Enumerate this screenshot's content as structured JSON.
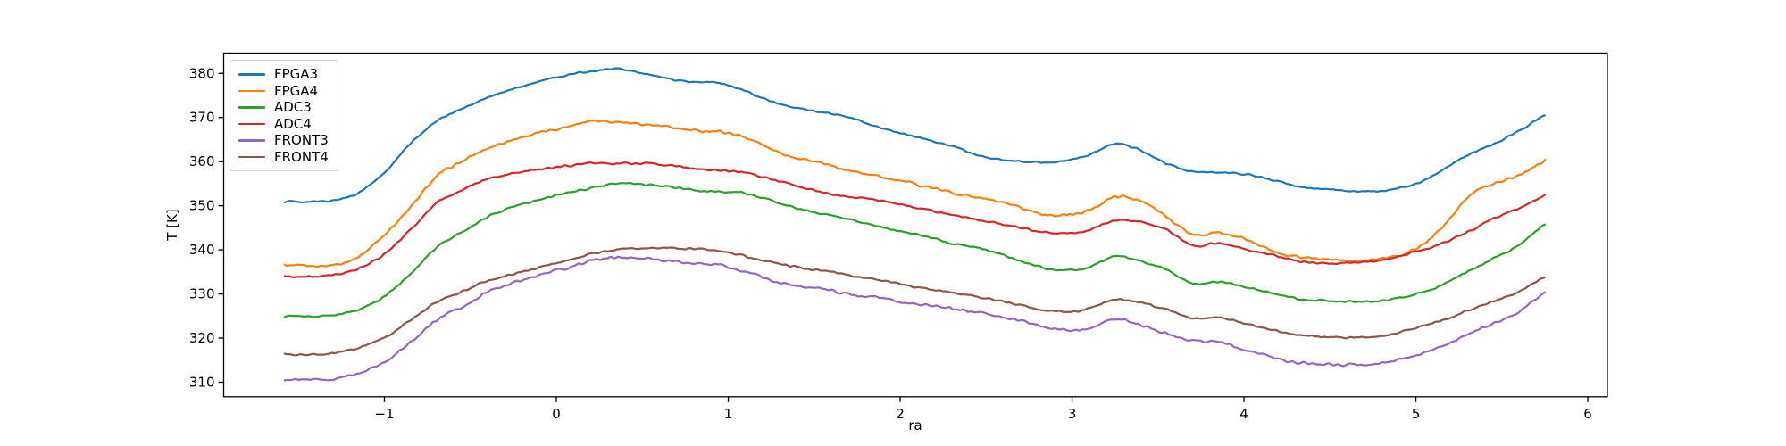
{
  "chart_data": {
    "type": "line",
    "title": "",
    "xlabel": "ra",
    "ylabel": "T [K]",
    "xlim": [
      -1.935,
      6.114
    ],
    "ylim": [
      306.7,
      384.6
    ],
    "xticks": [
      -1,
      0,
      1,
      2,
      3,
      4,
      5,
      6
    ],
    "yticks": [
      310,
      320,
      330,
      340,
      350,
      360,
      370,
      380
    ],
    "grid": false,
    "legend_position": "upper left",
    "background_color": "#ffffff",
    "axis_color": "#000000",
    "x": [
      -1.58,
      -1.45,
      -1.3,
      -1.15,
      -1.0,
      -0.85,
      -0.7,
      -0.55,
      -0.4,
      -0.25,
      -0.1,
      0.05,
      0.2,
      0.35,
      0.5,
      0.65,
      0.8,
      0.95,
      1.1,
      1.3,
      1.5,
      1.7,
      1.9,
      2.1,
      2.3,
      2.5,
      2.7,
      2.85,
      3.0,
      3.1,
      3.25,
      3.4,
      3.55,
      3.7,
      3.85,
      4.0,
      4.15,
      4.3,
      4.5,
      4.65,
      4.8,
      5.0,
      5.15,
      5.3,
      5.45,
      5.6,
      5.75
    ],
    "series": [
      {
        "name": "FPGA3",
        "color": "#1f77b4",
        "noise": 0.25,
        "values": [
          351.0,
          350.9,
          351.2,
          353.0,
          357.5,
          364.0,
          369.0,
          372.0,
          374.5,
          376.5,
          378.2,
          379.5,
          380.5,
          381.0,
          380.0,
          378.8,
          378.0,
          377.8,
          376.0,
          373.0,
          371.5,
          370.0,
          367.5,
          365.5,
          363.5,
          361.0,
          360.0,
          359.8,
          360.5,
          361.5,
          364.0,
          362.5,
          359.5,
          357.8,
          357.5,
          357.2,
          356.0,
          354.5,
          353.7,
          353.3,
          353.4,
          355.0,
          358.0,
          361.5,
          364.0,
          367.0,
          370.7
        ]
      },
      {
        "name": "FPGA4",
        "color": "#ff7f0e",
        "noise": 0.4,
        "values": [
          336.4,
          336.3,
          336.6,
          338.5,
          343.5,
          349.5,
          356.5,
          360.0,
          363.0,
          365.0,
          366.5,
          367.8,
          369.3,
          369.0,
          368.5,
          367.8,
          367.0,
          366.8,
          365.5,
          362.0,
          360.0,
          358.0,
          356.5,
          354.8,
          353.0,
          351.5,
          349.5,
          348.0,
          348.0,
          349.0,
          352.0,
          351.0,
          347.5,
          343.5,
          343.8,
          342.5,
          340.0,
          338.5,
          337.8,
          337.5,
          338.0,
          340.2,
          345.0,
          352.0,
          355.0,
          357.0,
          360.3
        ]
      },
      {
        "name": "ADC3",
        "color": "#2ca02c",
        "noise": 0.28,
        "values": [
          325.0,
          324.9,
          325.2,
          326.5,
          329.5,
          334.5,
          340.5,
          344.0,
          347.5,
          349.8,
          351.3,
          352.8,
          354.0,
          355.0,
          354.8,
          354.3,
          353.5,
          353.2,
          352.8,
          350.5,
          348.5,
          347.0,
          345.0,
          343.5,
          341.5,
          340.0,
          337.5,
          335.8,
          335.4,
          336.0,
          338.6,
          337.4,
          335.5,
          332.4,
          332.8,
          331.7,
          330.3,
          329.0,
          328.4,
          328.3,
          328.4,
          330.0,
          332.0,
          335.0,
          338.0,
          341.0,
          346.0
        ]
      },
      {
        "name": "ADC4",
        "color": "#d62728",
        "noise": 0.3,
        "values": [
          334.0,
          333.9,
          334.2,
          335.8,
          339.0,
          344.5,
          350.5,
          353.5,
          356.0,
          357.3,
          358.3,
          359.0,
          359.6,
          359.5,
          359.6,
          359.2,
          358.5,
          358.0,
          357.5,
          355.5,
          353.5,
          352.0,
          351.0,
          349.5,
          348.0,
          346.5,
          345.0,
          344.0,
          343.8,
          344.5,
          346.7,
          346.3,
          344.5,
          341.0,
          341.5,
          340.2,
          339.0,
          337.5,
          336.9,
          337.2,
          337.6,
          339.5,
          341.5,
          344.0,
          347.0,
          349.5,
          352.3
        ]
      },
      {
        "name": "FRONT3",
        "color": "#9467bd",
        "noise": 0.4,
        "values": [
          310.7,
          310.5,
          310.8,
          312.0,
          314.5,
          319.0,
          324.0,
          327.0,
          330.5,
          332.5,
          334.3,
          335.8,
          337.5,
          338.3,
          338.0,
          337.5,
          337.0,
          336.5,
          335.0,
          332.5,
          331.4,
          330.0,
          329.0,
          327.6,
          326.8,
          325.5,
          324.0,
          322.5,
          321.8,
          322.3,
          324.3,
          323.0,
          321.0,
          319.3,
          319.2,
          317.3,
          315.8,
          314.5,
          314.0,
          313.9,
          314.3,
          316.2,
          318.0,
          320.8,
          323.3,
          326.0,
          330.5
        ]
      },
      {
        "name": "FRONT4",
        "color": "#8c564b",
        "noise": 0.28,
        "values": [
          316.4,
          316.3,
          316.6,
          317.8,
          320.0,
          324.0,
          328.0,
          330.5,
          333.0,
          334.5,
          336.0,
          337.3,
          339.0,
          340.0,
          340.3,
          340.4,
          340.2,
          339.8,
          338.5,
          336.8,
          335.5,
          334.3,
          333.0,
          331.5,
          330.3,
          329.0,
          327.5,
          326.3,
          326.0,
          326.8,
          328.8,
          328.0,
          326.5,
          324.5,
          324.7,
          323.3,
          322.0,
          320.8,
          320.2,
          320.1,
          320.4,
          322.3,
          324.0,
          326.3,
          328.3,
          330.5,
          334.0
        ]
      }
    ]
  }
}
